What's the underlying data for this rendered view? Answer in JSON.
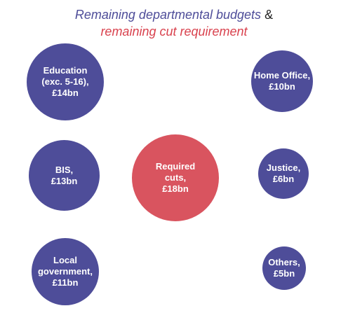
{
  "title": {
    "part1": "Remaining departmental budgets",
    "amp": "&",
    "part2": "remaining cut requirement"
  },
  "colors": {
    "department": "#4e4d99",
    "cut": "#d9545f"
  },
  "bubbles": {
    "education": {
      "lines": [
        "Education",
        "(exc. 5-16),",
        "£14bn"
      ],
      "value_bn": 14
    },
    "bis": {
      "lines": [
        "BIS,",
        "£13bn"
      ],
      "value_bn": 13
    },
    "local": {
      "lines": [
        "Local",
        "government,",
        "£11bn"
      ],
      "value_bn": 11
    },
    "cuts": {
      "lines": [
        "Required",
        "cuts,",
        "£18bn"
      ],
      "value_bn": 18
    },
    "home": {
      "lines": [
        "Home Office,",
        "£10bn"
      ],
      "value_bn": 10
    },
    "justice": {
      "lines": [
        "Justice,",
        "£6bn"
      ],
      "value_bn": 6
    },
    "others": {
      "lines": [
        "Others,",
        "£5bn"
      ],
      "value_bn": 5
    }
  }
}
